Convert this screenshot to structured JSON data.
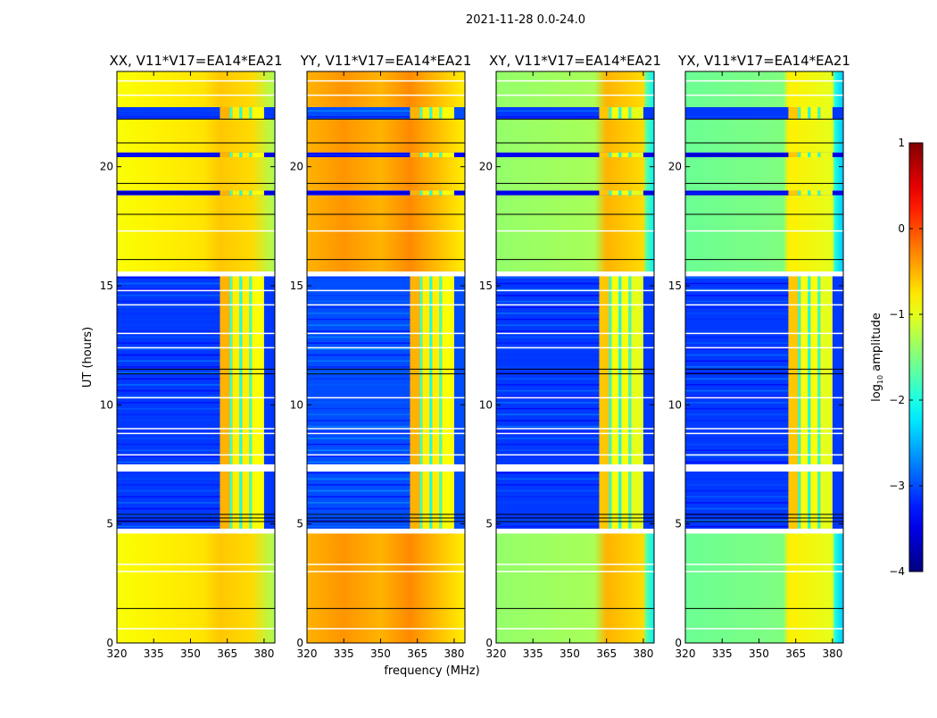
{
  "chart_data": {
    "type": "heatmap",
    "title": "2021-11-28 0.0-24.0",
    "xlabel": "frequency (MHz)",
    "ylabel": "UT (hours)",
    "xlim": [
      320,
      384.4
    ],
    "ylim": [
      0,
      24
    ],
    "xticks": [
      320,
      335,
      350,
      365,
      380
    ],
    "yticks": [
      0,
      5,
      10,
      15,
      20
    ],
    "colorbar": {
      "label_main": "log",
      "label_sub": "10",
      "label_rest": " amplitude",
      "colormap": "jet",
      "range": [
        -4,
        1
      ],
      "ticks": [
        1,
        0,
        -1,
        -2,
        -3,
        -4
      ],
      "tick_labels": [
        "1",
        "0",
        "−1",
        "−2",
        "−3",
        "−4"
      ]
    },
    "time_segments": [
      {
        "t": [
          0,
          4.6
        ],
        "state": "bright"
      },
      {
        "t": [
          4.6,
          4.8
        ],
        "state": "flagged"
      },
      {
        "t": [
          4.8,
          7.2
        ],
        "state": "noise"
      },
      {
        "t": [
          7.2,
          7.5
        ],
        "state": "flagged"
      },
      {
        "t": [
          7.5,
          15.4
        ],
        "state": "noise"
      },
      {
        "t": [
          15.4,
          15.6
        ],
        "state": "flagged"
      },
      {
        "t": [
          15.6,
          18.8
        ],
        "state": "bright"
      },
      {
        "t": [
          18.8,
          19.0
        ],
        "state": "dark"
      },
      {
        "t": [
          19.0,
          20.4
        ],
        "state": "bright"
      },
      {
        "t": [
          20.4,
          20.6
        ],
        "state": "dark"
      },
      {
        "t": [
          20.6,
          22.0
        ],
        "state": "bright"
      },
      {
        "t": [
          22.0,
          22.5
        ],
        "state": "noise"
      },
      {
        "t": [
          22.5,
          24.0
        ],
        "state": "bright"
      }
    ],
    "black_lines": [
      1.45,
      5.1,
      5.25,
      5.4,
      11.3,
      11.5,
      16.1,
      18.0,
      19.3,
      21.0,
      22.0
    ],
    "white_lines": [
      0.6,
      3.0,
      3.3,
      7.9,
      8.8,
      9.0,
      10.3,
      12.4,
      13.0,
      14.2,
      14.8,
      17.3,
      23.0,
      23.6
    ],
    "rfi_blocks": [
      {
        "f": [
          362,
          366
        ],
        "v": -0.5
      },
      {
        "f": [
          366,
          367
        ],
        "v": -1.8
      },
      {
        "f": [
          367,
          370
        ],
        "v": -0.8
      },
      {
        "f": [
          370,
          371
        ],
        "v": -2.0
      },
      {
        "f": [
          371,
          374
        ],
        "v": -0.8
      },
      {
        "f": [
          374,
          375
        ],
        "v": -1.8
      },
      {
        "f": [
          375,
          380
        ],
        "v": -0.9
      }
    ],
    "series": [
      {
        "name": "XX, V11*V17=EA14*EA21",
        "noise": -3.1,
        "bright_profile": [
          [
            320,
            -0.9
          ],
          [
            340,
            -0.8
          ],
          [
            355,
            -0.75
          ],
          [
            362,
            -0.6
          ],
          [
            375,
            -0.7
          ],
          [
            384.4,
            -1.3
          ]
        ]
      },
      {
        "name": "YY, V11*V17=EA14*EA21",
        "noise": -3.0,
        "bright_profile": [
          [
            320,
            -0.5
          ],
          [
            335,
            -0.35
          ],
          [
            350,
            -0.5
          ],
          [
            362,
            -0.3
          ],
          [
            384.4,
            -0.8
          ]
        ]
      },
      {
        "name": "XY, V11*V17=EA14*EA21",
        "noise": -3.1,
        "bright_profile": [
          [
            320,
            -1.4
          ],
          [
            360,
            -1.3
          ],
          [
            365,
            -0.5
          ],
          [
            380,
            -0.7
          ],
          [
            381,
            -1.6
          ],
          [
            384.4,
            -2.2
          ]
        ]
      },
      {
        "name": "YX, V11*V17=EA14*EA21",
        "noise": -3.1,
        "bright_profile": [
          [
            320,
            -1.6
          ],
          [
            360,
            -1.5
          ],
          [
            362,
            -0.8
          ],
          [
            380,
            -1.0
          ],
          [
            381,
            -2.0
          ],
          [
            384.4,
            -2.4
          ]
        ]
      }
    ]
  }
}
